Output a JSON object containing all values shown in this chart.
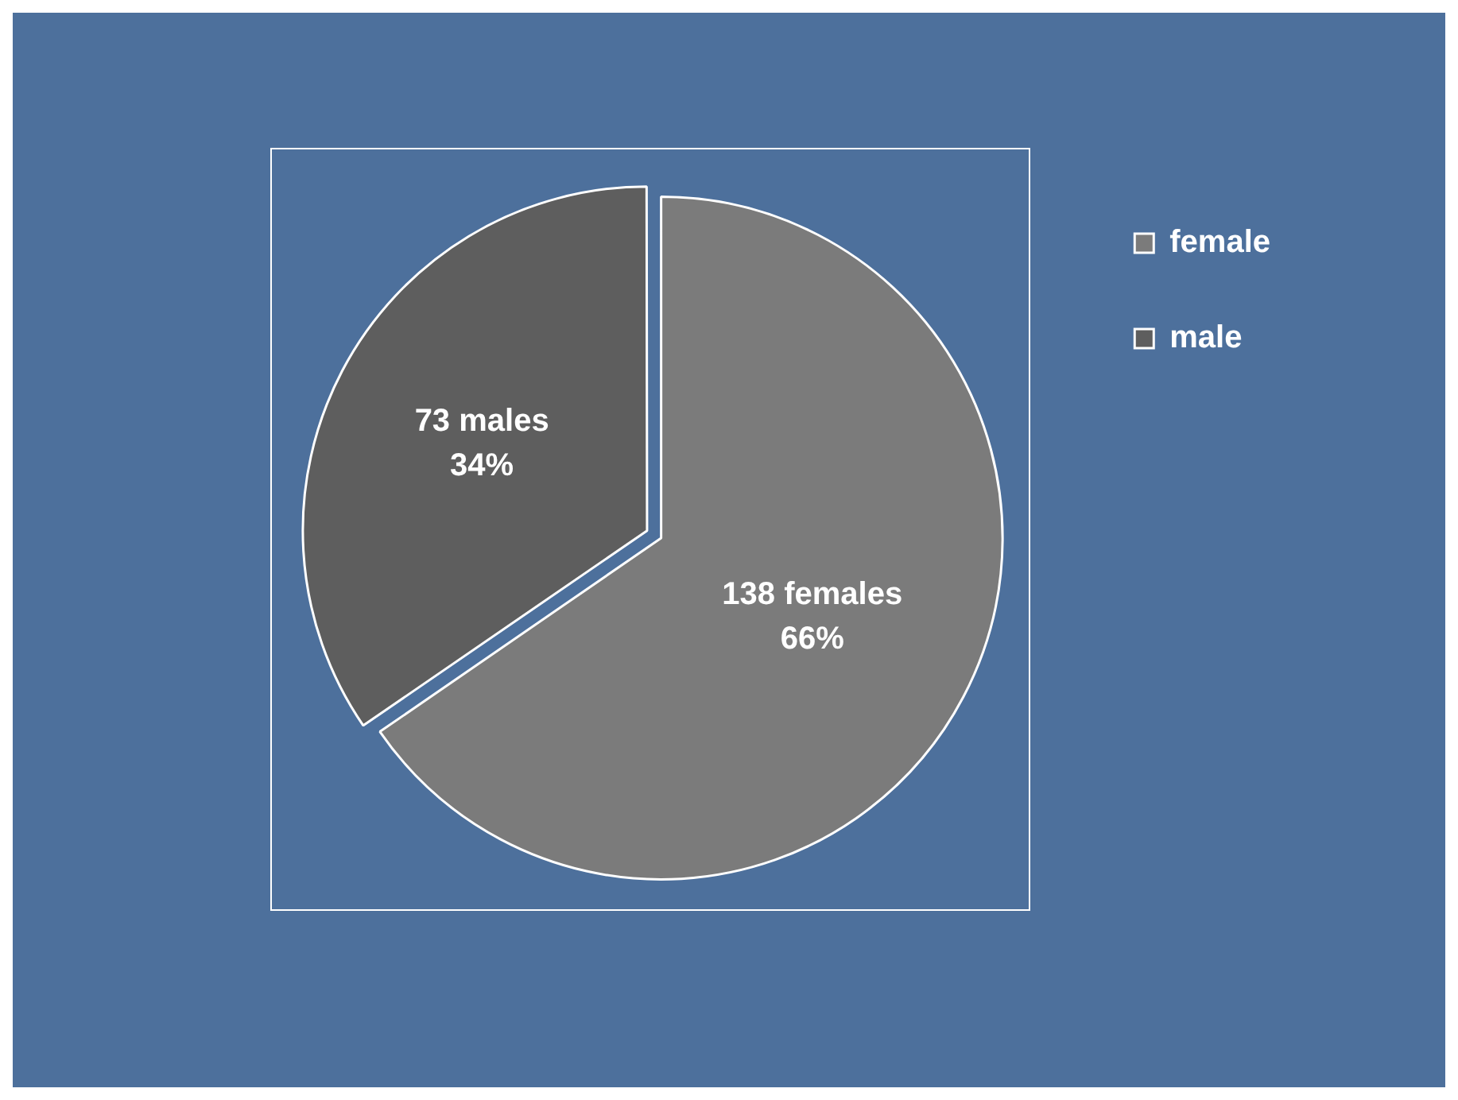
{
  "chart_data": {
    "type": "pie",
    "categories": [
      "female",
      "male"
    ],
    "values": [
      138,
      73
    ],
    "colors": [
      "#7b7b7b",
      "#5e5e5e"
    ],
    "value_labels": [
      "138 females\n66%",
      "73 males\n34%"
    ],
    "legend": "top right"
  }
}
